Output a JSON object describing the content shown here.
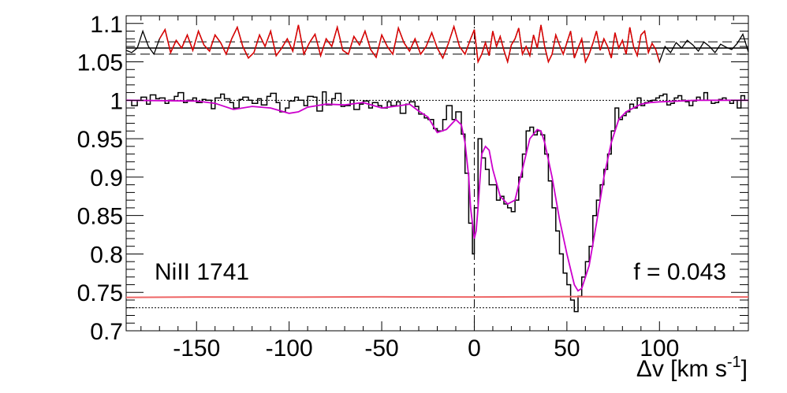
{
  "chart_data": {
    "type": "line",
    "title": "",
    "xlabel": "Δv [km s",
    "xlabel_sup": "-1",
    "xlabel_close": "]",
    "ylabel": "",
    "xlim": [
      -188,
      148
    ],
    "ylim": [
      0.7,
      1.11
    ],
    "x_ticks": [
      -150,
      -100,
      -50,
      0,
      50,
      100
    ],
    "x_tick_labels": [
      "-150",
      "-100",
      "-50",
      "0",
      "50",
      "100"
    ],
    "y_ticks": [
      0.7,
      0.75,
      0.8,
      0.85,
      0.9,
      0.95,
      1.0,
      1.05,
      1.1
    ],
    "y_tick_labels": [
      "0.7",
      "0.75",
      "0.8",
      "0.85",
      "0.9",
      "0.95",
      "1",
      "1.05",
      "1.1"
    ],
    "annotations": {
      "line_label": "NiII 1741",
      "f_label": "f = 0.043"
    },
    "colors": {
      "data": "#000000",
      "model": "#cc00cc",
      "residual": "#dd0000",
      "error": "#ee6666"
    },
    "reference_lines": {
      "continuum": 1.0,
      "zero_level": 0.73,
      "residual_center": 1.068,
      "residual_upper": 1.076,
      "residual_lower": 1.06,
      "velocity_zero": 0
    },
    "series": [
      {
        "key": "flux",
        "style": "step",
        "x": [
          -188,
          -185,
          -182,
          -180,
          -177,
          -175,
          -172,
          -170,
          -167,
          -165,
          -162,
          -160,
          -157,
          -155,
          -152,
          -150,
          -147,
          -145,
          -142,
          -140,
          -137,
          -135,
          -132,
          -130,
          -127,
          -125,
          -122,
          -120,
          -117,
          -115,
          -112,
          -110,
          -107,
          -105,
          -102,
          -100,
          -97,
          -95,
          -92,
          -90,
          -87,
          -85,
          -82,
          -80,
          -77,
          -75,
          -72,
          -70,
          -67,
          -65,
          -62,
          -60,
          -57,
          -55,
          -52,
          -50,
          -47,
          -45,
          -42,
          -40,
          -37,
          -35,
          -32,
          -30,
          -27,
          -25,
          -22,
          -20,
          -17,
          -15,
          -12,
          -10,
          -7,
          -5,
          -3,
          -1,
          0,
          2,
          4,
          6,
          8,
          10,
          12,
          14,
          16,
          18,
          20,
          22,
          24,
          26,
          28,
          30,
          32,
          34,
          36,
          38,
          40,
          42,
          44,
          46,
          48,
          50,
          52,
          54,
          56,
          58,
          60,
          62,
          64,
          66,
          68,
          70,
          72,
          74,
          76,
          78,
          80,
          82,
          84,
          86,
          88,
          90,
          92,
          94,
          96,
          98,
          100,
          102,
          104,
          106,
          108,
          110,
          112,
          114,
          116,
          118,
          120,
          122,
          124,
          126,
          128,
          130,
          132,
          134,
          136,
          138,
          140,
          142,
          144,
          146
        ],
        "y": [
          1.0,
          0.993,
          1.0,
          1.004,
          0.995,
          1.007,
          1.002,
          1.003,
          0.996,
          1.0,
          1.005,
          1.01,
          0.997,
          1.0,
          1.003,
          0.997,
          1.001,
          1.0,
          0.989,
          1.003,
          1.008,
          1.002,
          0.997,
          0.99,
          1.001,
          1.004,
          1.0,
          0.996,
          1.002,
          0.994,
          1.005,
          1.009,
          0.997,
          0.985,
          0.99,
          0.999,
          1.004,
          1.0,
          0.993,
          1.005,
          1.004,
          0.986,
          1.011,
          0.994,
          1.002,
          1.009,
          0.992,
          0.993,
          1.0,
          0.988,
          0.995,
          0.999,
          0.99,
          0.997,
          0.993,
          0.99,
          0.998,
          0.993,
          0.998,
          0.983,
          0.995,
          0.998,
          0.992,
          0.982,
          0.977,
          0.975,
          0.963,
          0.96,
          0.975,
          0.993,
          0.975,
          0.985,
          0.956,
          0.905,
          0.84,
          0.8,
          0.86,
          0.95,
          0.925,
          0.91,
          0.89,
          0.89,
          0.87,
          0.875,
          0.865,
          0.86,
          0.855,
          0.87,
          0.9,
          0.93,
          0.96,
          0.965,
          0.955,
          0.96,
          0.955,
          0.93,
          0.895,
          0.86,
          0.83,
          0.8,
          0.775,
          0.76,
          0.74,
          0.725,
          0.745,
          0.77,
          0.79,
          0.81,
          0.85,
          0.87,
          0.89,
          0.91,
          0.93,
          0.96,
          0.99,
          0.975,
          0.98,
          0.985,
          0.995,
          0.99,
          1.003,
          0.993,
          0.997,
          0.999,
          1.0,
          1.003,
          1.006,
          1.008,
          0.994,
          0.996,
          1.003,
          1.006,
          1.0,
          0.998,
          0.993,
          0.999,
          1.004,
          1.0,
          1.01,
          1.0,
          0.996,
          0.997,
          1.001,
          1.003,
          1.0,
          0.996,
          1.0,
          0.99,
          1.006,
          1.0
        ]
      },
      {
        "key": "model",
        "style": "line",
        "x": [
          -188,
          -150,
          -140,
          -130,
          -120,
          -110,
          -100,
          -95,
          -90,
          -80,
          -70,
          -60,
          -50,
          -40,
          -35,
          -30,
          -25,
          -20,
          -15,
          -10,
          -7,
          -5,
          -3,
          -2,
          -1,
          0,
          1,
          2,
          4,
          6,
          8,
          10,
          14,
          18,
          22,
          26,
          30,
          34,
          36,
          38,
          42,
          46,
          50,
          52,
          54,
          56,
          58,
          62,
          66,
          70,
          74,
          78,
          82,
          86,
          90,
          95,
          100,
          110,
          120,
          130,
          140,
          148
        ],
        "y": [
          1.0,
          0.999,
          0.996,
          0.988,
          0.992,
          0.99,
          0.983,
          0.985,
          0.991,
          0.995,
          0.994,
          0.997,
          0.99,
          0.993,
          0.995,
          0.986,
          0.978,
          0.958,
          0.962,
          0.975,
          0.968,
          0.945,
          0.9,
          0.86,
          0.84,
          0.82,
          0.83,
          0.86,
          0.93,
          0.94,
          0.935,
          0.91,
          0.875,
          0.865,
          0.87,
          0.91,
          0.95,
          0.962,
          0.96,
          0.945,
          0.9,
          0.845,
          0.8,
          0.78,
          0.76,
          0.752,
          0.755,
          0.785,
          0.84,
          0.9,
          0.945,
          0.975,
          0.985,
          0.99,
          0.995,
          0.997,
          0.998,
          0.999,
          1.0,
          1.0,
          1.0,
          1.0
        ]
      },
      {
        "key": "residual",
        "style": "line",
        "x": [
          -188,
          -185,
          -182,
          -179,
          -176,
          -173,
          -170,
          -167,
          -164,
          -161,
          -158,
          -155,
          -152,
          -149,
          -146,
          -143,
          -140,
          -137,
          -134,
          -131,
          -128,
          -125,
          -122,
          -119,
          -116,
          -113,
          -110,
          -107,
          -104,
          -101,
          -98,
          -95,
          -92,
          -89,
          -86,
          -83,
          -80,
          -77,
          -74,
          -71,
          -68,
          -65,
          -62,
          -59,
          -56,
          -53,
          -50,
          -47,
          -44,
          -41,
          -38,
          -35,
          -32,
          -29,
          -26,
          -23,
          -20,
          -17,
          -14,
          -11,
          -8,
          -5,
          -2,
          0,
          2,
          4,
          6,
          8,
          10,
          12,
          14,
          16,
          18,
          20,
          22,
          24,
          26,
          28,
          30,
          32,
          34,
          36,
          38,
          40,
          42,
          44,
          46,
          48,
          50,
          52,
          54,
          56,
          58,
          60,
          62,
          64,
          66,
          68,
          70,
          72,
          74,
          76,
          78,
          80,
          82,
          84,
          86,
          88,
          90,
          92,
          94,
          96,
          98,
          100,
          103,
          106,
          109,
          112,
          115,
          118,
          121,
          124,
          127,
          130,
          133,
          136,
          139,
          142,
          145,
          148
        ],
        "y": [
          1.065,
          1.062,
          1.068,
          1.09,
          1.07,
          1.06,
          1.08,
          1.092,
          1.062,
          1.078,
          1.068,
          1.085,
          1.065,
          1.09,
          1.072,
          1.064,
          1.085,
          1.075,
          1.06,
          1.08,
          1.095,
          1.07,
          1.055,
          1.062,
          1.085,
          1.07,
          1.09,
          1.058,
          1.068,
          1.08,
          1.064,
          1.098,
          1.06,
          1.075,
          1.086,
          1.058,
          1.08,
          1.07,
          1.095,
          1.065,
          1.06,
          1.083,
          1.072,
          1.09,
          1.066,
          1.056,
          1.085,
          1.07,
          1.06,
          1.094,
          1.075,
          1.064,
          1.08,
          1.06,
          1.07,
          1.088,
          1.068,
          1.055,
          1.074,
          1.096,
          1.07,
          1.06,
          1.08,
          1.092,
          1.05,
          1.06,
          1.075,
          1.058,
          1.09,
          1.07,
          1.083,
          1.065,
          1.05,
          1.072,
          1.08,
          1.094,
          1.06,
          1.07,
          1.058,
          1.085,
          1.068,
          1.098,
          1.07,
          1.05,
          1.06,
          1.085,
          1.072,
          1.06,
          1.075,
          1.09,
          1.055,
          1.068,
          1.08,
          1.05,
          1.06,
          1.074,
          1.09,
          1.065,
          1.08,
          1.07,
          1.055,
          1.088,
          1.068,
          1.078,
          1.06,
          1.095,
          1.07,
          1.058,
          1.085,
          1.09,
          1.062,
          1.074,
          1.066,
          1.05,
          1.07,
          1.062,
          1.075,
          1.068,
          1.078,
          1.072,
          1.064,
          1.076,
          1.07,
          1.062,
          1.073,
          1.069,
          1.066,
          1.074,
          1.086,
          1.063
        ]
      },
      {
        "key": "error",
        "style": "line",
        "x": [
          -188,
          -150,
          -100,
          -50,
          0,
          50,
          100,
          148
        ],
        "y": [
          0.7435,
          0.744,
          0.7438,
          0.7442,
          0.744,
          0.7445,
          0.7442,
          0.744
        ]
      }
    ]
  }
}
